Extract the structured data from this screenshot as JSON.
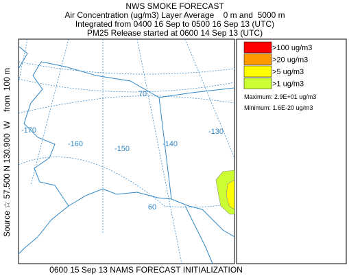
{
  "header": {
    "title": "NWS SMOKE FORECAST",
    "lines": [
      "Air Concentration (ug/m3) Layer Average    0 m and  5000 m",
      "Integrated from 0400 16 Sep to 0500 16 Sep 13 (UTC)",
      "PM25 Release started at 0600 14 Sep 13 (UTC)"
    ]
  },
  "source_label": "Source ☆ 57.500 N 130.900  W    from  100 m",
  "footer": "0600 15 Sep 13 NAMS FORECAST INITIALIZATION",
  "map": {
    "longitude_labels": [
      "-170",
      "-160",
      "-150",
      "-140",
      "-130"
    ],
    "latitude_labels": [
      "70",
      "60"
    ]
  },
  "legend": {
    "entries": [
      {
        "label": ">100 ug/m3",
        "color": "#ff0000"
      },
      {
        "label": ">20 ug/m3",
        "color": "#ff9900"
      },
      {
        "label": ">5 ug/m3",
        "color": "#ffff00"
      },
      {
        "label": ">1 ug/m3",
        "color": "#ccff33"
      }
    ],
    "maximum": "Maximum: 2.9E+01 ug/m3",
    "minimum": "Minimum: 1.6E-20 ug/m3"
  }
}
